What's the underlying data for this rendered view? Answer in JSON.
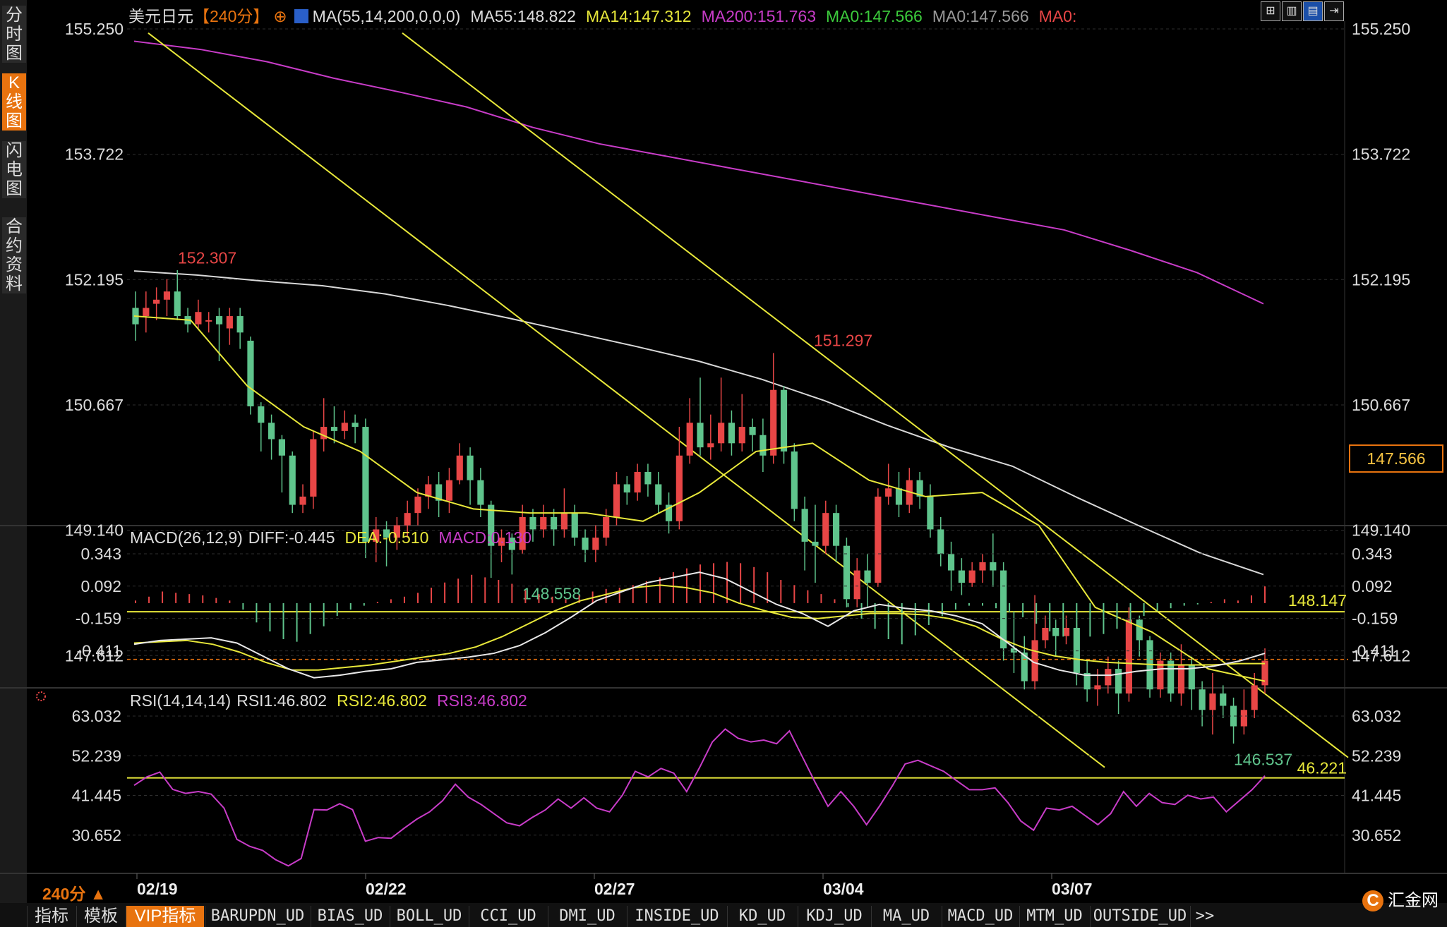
{
  "sidebar": {
    "tabs": [
      {
        "label": "分时图",
        "active": false
      },
      {
        "label": "K线图",
        "active": true
      },
      {
        "label": "闪电图",
        "active": false
      },
      {
        "label": "合约资料",
        "active": false
      }
    ]
  },
  "header": {
    "symbol": "美元日元",
    "period": "【240分】",
    "ma_params": "MA(55,14,200,0,0,0)",
    "ma55": "MA55:148.822",
    "ma14": "MA14:147.312",
    "ma200": "MA200:151.763",
    "ma0a": "MA0:147.566",
    "ma0b": "MA0:147.566",
    "ma0c": "MA0:"
  },
  "toolbar_icons": [
    "grid-icon",
    "chart-layout-icon",
    "chart-active-icon",
    "export-icon"
  ],
  "macd_legend": {
    "name": "MACD(26,12,9)",
    "diff": "DIFF:-0.445",
    "dea": "DEA:-0.510",
    "macd": "MACD:0.130"
  },
  "rsi_legend": {
    "name": "RSI(14,14,14)",
    "rsi1": "RSI1:46.802",
    "rsi2": "RSI2:46.802",
    "rsi3": "RSI3:46.802"
  },
  "price_panel": {
    "ticks": [
      "155.250",
      "153.722",
      "152.195",
      "150.667",
      "149.140",
      "147.612"
    ],
    "ticks_right": [
      "155.250",
      "153.722",
      "152.195",
      "150.667",
      "149.140",
      "147.612"
    ],
    "current_price": "147.566",
    "horizontal_level": "148.147",
    "annotations": [
      {
        "label": "152.307",
        "color": "#e84646"
      },
      {
        "label": "151.297",
        "color": "#e84646"
      },
      {
        "label": "148.558",
        "color": "#5fc48c"
      },
      {
        "label": "146.537",
        "color": "#5fc48c"
      }
    ]
  },
  "macd_panel": {
    "ticks": [
      "0.343",
      "0.092",
      "-0.159",
      "-0.411"
    ]
  },
  "rsi_panel": {
    "ticks": [
      "63.032",
      "52.239",
      "41.445",
      "30.652"
    ],
    "level": "46.221"
  },
  "x_axis": {
    "dates": [
      "02/19",
      "02/22",
      "02/27",
      "03/04",
      "03/07"
    ]
  },
  "period_badge": "240分 ▲",
  "bottom_tabs": [
    "指标",
    "模板",
    "VIP指标",
    "BARUPDN_UD",
    "BIAS_UD",
    "BOLL_UD",
    "CCI_UD",
    "DMI_UD",
    "INSIDE_UD",
    "KD_UD",
    "KDJ_UD",
    "MA_UD",
    "MACD_UD",
    "MTM_UD",
    "OUTSIDE_UD",
    ">>"
  ],
  "logo": "汇金网",
  "colors": {
    "up": "#e84646",
    "down": "#5fc48c",
    "ma55": "#d8d8d8",
    "ma14": "#e8e83a",
    "ma200": "#c83cc8",
    "accent": "#e8730f"
  },
  "chart_data": {
    "type": "candlestick",
    "title": "美元日元【240分】",
    "ylim": [
      146.2,
      155.6
    ],
    "x_labels": [
      "02/19",
      "02/22",
      "02/27",
      "03/04",
      "03/07"
    ],
    "candles": [
      [
        151.85,
        151.65,
        152.05,
        151.45
      ],
      [
        151.75,
        151.85,
        152.05,
        151.55
      ],
      [
        151.9,
        151.95,
        152.1,
        151.7
      ],
      [
        151.95,
        152.05,
        152.2,
        151.75
      ],
      [
        152.05,
        151.75,
        152.31,
        151.7
      ],
      [
        151.75,
        151.65,
        151.85,
        151.55
      ],
      [
        151.65,
        151.8,
        151.95,
        151.6
      ],
      [
        151.7,
        151.7,
        151.8,
        151.55
      ],
      [
        151.75,
        151.65,
        151.85,
        151.2
      ],
      [
        151.6,
        151.75,
        151.85,
        151.4
      ],
      [
        151.75,
        151.55,
        151.85,
        151.35
      ],
      [
        151.45,
        150.65,
        151.5,
        150.55
      ],
      [
        150.65,
        150.45,
        150.7,
        150.1
      ],
      [
        150.45,
        150.25,
        150.55,
        150.0
      ],
      [
        150.25,
        150.05,
        150.3,
        149.6
      ],
      [
        150.05,
        149.45,
        150.1,
        149.35
      ],
      [
        149.45,
        149.55,
        149.7,
        149.35
      ],
      [
        149.55,
        150.25,
        150.35,
        149.4
      ],
      [
        150.25,
        150.4,
        150.75,
        150.1
      ],
      [
        150.4,
        150.35,
        150.65,
        150.2
      ],
      [
        150.35,
        150.45,
        150.6,
        150.25
      ],
      [
        150.45,
        150.4,
        150.55,
        150.2
      ],
      [
        150.4,
        149.0,
        150.5,
        148.8
      ],
      [
        149.0,
        149.15,
        149.3,
        148.75
      ],
      [
        149.15,
        149.05,
        149.25,
        148.7
      ],
      [
        149.05,
        149.2,
        149.3,
        148.9
      ],
      [
        149.2,
        149.35,
        149.5,
        149.05
      ],
      [
        149.35,
        149.55,
        149.65,
        149.2
      ],
      [
        149.55,
        149.7,
        149.8,
        149.4
      ],
      [
        149.7,
        149.5,
        149.85,
        149.3
      ],
      [
        149.5,
        149.75,
        149.9,
        149.35
      ],
      [
        149.75,
        150.05,
        150.2,
        149.7
      ],
      [
        150.05,
        149.75,
        150.15,
        149.45
      ],
      [
        149.75,
        149.45,
        149.9,
        149.3
      ],
      [
        149.45,
        148.95,
        149.5,
        148.56
      ],
      [
        148.95,
        149.05,
        149.15,
        148.75
      ],
      [
        149.05,
        148.9,
        149.1,
        148.6
      ],
      [
        148.9,
        149.3,
        149.45,
        148.85
      ],
      [
        149.3,
        149.15,
        149.4,
        149.0
      ],
      [
        149.15,
        149.3,
        149.45,
        149.05
      ],
      [
        149.3,
        149.15,
        149.4,
        148.95
      ],
      [
        149.15,
        149.35,
        149.65,
        149.05
      ],
      [
        149.35,
        149.05,
        149.45,
        148.95
      ],
      [
        149.05,
        148.9,
        149.15,
        148.75
      ],
      [
        148.9,
        149.05,
        149.2,
        148.75
      ],
      [
        149.05,
        149.3,
        149.4,
        148.95
      ],
      [
        149.3,
        149.7,
        149.85,
        149.2
      ],
      [
        149.7,
        149.6,
        149.8,
        149.45
      ],
      [
        149.6,
        149.85,
        149.95,
        149.5
      ],
      [
        149.85,
        149.7,
        149.95,
        149.55
      ],
      [
        149.7,
        149.45,
        149.85,
        149.35
      ],
      [
        149.45,
        149.25,
        149.6,
        149.1
      ],
      [
        149.25,
        150.05,
        150.4,
        149.15
      ],
      [
        150.05,
        150.45,
        150.75,
        149.95
      ],
      [
        150.45,
        150.15,
        151.0,
        150.05
      ],
      [
        150.15,
        150.2,
        150.55,
        150.0
      ],
      [
        150.2,
        150.45,
        151.0,
        150.1
      ],
      [
        150.45,
        150.2,
        150.6,
        150.05
      ],
      [
        150.2,
        150.4,
        150.8,
        150.1
      ],
      [
        150.4,
        150.3,
        150.5,
        150.1
      ],
      [
        150.3,
        150.05,
        150.5,
        149.85
      ],
      [
        150.05,
        150.85,
        151.3,
        149.95
      ],
      [
        150.85,
        150.1,
        150.9,
        149.95
      ],
      [
        150.1,
        149.4,
        150.2,
        149.25
      ],
      [
        149.4,
        149.0,
        149.55,
        148.65
      ],
      [
        149.0,
        148.95,
        149.45,
        148.5
      ],
      [
        148.95,
        149.35,
        149.5,
        148.85
      ],
      [
        149.35,
        148.95,
        149.45,
        148.75
      ],
      [
        148.95,
        148.3,
        149.05,
        148.2
      ],
      [
        148.3,
        148.65,
        148.8,
        148.2
      ],
      [
        148.65,
        148.5,
        148.85,
        148.2
      ],
      [
        148.5,
        149.55,
        149.65,
        148.45
      ],
      [
        149.55,
        149.65,
        149.95,
        149.45
      ],
      [
        149.65,
        149.45,
        149.85,
        149.3
      ],
      [
        149.45,
        149.75,
        149.9,
        149.35
      ],
      [
        149.75,
        149.55,
        149.85,
        149.4
      ],
      [
        149.55,
        149.15,
        149.7,
        149.05
      ],
      [
        149.15,
        148.85,
        149.3,
        148.7
      ],
      [
        148.85,
        148.65,
        149.0,
        148.4
      ],
      [
        148.65,
        148.5,
        148.8,
        148.35
      ],
      [
        148.5,
        148.65,
        148.75,
        148.45
      ],
      [
        148.65,
        148.75,
        148.85,
        148.5
      ],
      [
        148.75,
        148.65,
        149.1,
        148.45
      ],
      [
        148.65,
        147.7,
        148.75,
        147.55
      ],
      [
        147.7,
        147.65,
        148.15,
        147.4
      ],
      [
        147.65,
        147.3,
        147.85,
        147.2
      ],
      [
        147.3,
        147.8,
        148.35,
        147.2
      ],
      [
        147.8,
        147.95,
        148.1,
        147.7
      ],
      [
        147.95,
        147.85,
        148.05,
        147.6
      ],
      [
        147.85,
        147.95,
        148.1,
        147.75
      ],
      [
        147.95,
        147.4,
        148.0,
        147.25
      ],
      [
        147.4,
        147.2,
        147.55,
        147.05
      ],
      [
        147.2,
        147.25,
        147.45,
        147.0
      ],
      [
        147.25,
        147.45,
        147.6,
        147.15
      ],
      [
        147.45,
        147.15,
        147.55,
        146.9
      ],
      [
        147.15,
        148.05,
        148.2,
        147.05
      ],
      [
        148.05,
        147.8,
        148.1,
        147.6
      ],
      [
        147.8,
        147.2,
        147.85,
        147.1
      ],
      [
        147.2,
        147.55,
        147.65,
        147.1
      ],
      [
        147.55,
        147.15,
        147.65,
        147.05
      ],
      [
        147.15,
        147.5,
        147.75,
        147.0
      ],
      [
        147.5,
        147.2,
        147.6,
        146.95
      ],
      [
        147.2,
        146.95,
        147.3,
        146.75
      ],
      [
        146.95,
        147.15,
        147.4,
        146.65
      ],
      [
        147.15,
        147.0,
        147.25,
        146.85
      ],
      [
        147.0,
        146.75,
        147.1,
        146.54
      ],
      [
        146.75,
        146.95,
        147.2,
        146.65
      ],
      [
        146.95,
        147.25,
        147.4,
        146.85
      ],
      [
        147.25,
        147.55,
        147.7,
        147.15
      ]
    ],
    "ma55": [
      152.3,
      152.25,
      152.18,
      152.12,
      152.02,
      151.88,
      151.72,
      151.55,
      151.38,
      151.2,
      150.98,
      150.72,
      150.42,
      150.15,
      149.92,
      149.55,
      149.2,
      148.86,
      148.6
    ],
    "ma14": [
      151.75,
      151.7,
      150.9,
      150.4,
      150.1,
      149.6,
      149.4,
      149.35,
      149.35,
      149.25,
      149.6,
      150.1,
      150.2,
      149.75,
      149.55,
      149.6,
      149.2,
      148.2,
      147.9,
      147.45,
      147.3
    ],
    "ma200": [
      155.1,
      155.0,
      154.85,
      154.65,
      154.48,
      154.3,
      154.05,
      153.85,
      153.7,
      153.55,
      153.4,
      153.25,
      153.1,
      152.95,
      152.8,
      152.55,
      152.28,
      151.9
    ],
    "macd_hist": [
      0.02,
      0.05,
      0.09,
      0.08,
      0.07,
      0.06,
      0.04,
      0.02,
      -0.05,
      -0.15,
      -0.22,
      -0.28,
      -0.3,
      -0.24,
      -0.18,
      -0.1,
      -0.05,
      -0.02,
      0.01,
      0.03,
      0.05,
      0.08,
      0.12,
      0.16,
      0.19,
      0.22,
      0.2,
      0.18,
      0.15,
      0.1,
      0.07,
      0.05,
      0.03,
      0.06,
      0.09,
      0.11,
      0.12,
      0.14,
      0.17,
      0.2,
      0.24,
      0.27,
      0.3,
      0.31,
      0.32,
      0.31,
      0.28,
      0.24,
      0.18,
      0.14,
      0.1,
      0.07,
      0.03,
      -0.03,
      -0.12,
      -0.2,
      -0.28,
      -0.32,
      -0.25,
      -0.17,
      -0.1,
      -0.05,
      -0.02,
      -0.02,
      -0.04,
      -0.07,
      -0.11,
      -0.16,
      -0.22,
      -0.26,
      -0.28,
      -0.26,
      -0.24,
      -0.2,
      -0.15,
      -0.1,
      -0.06,
      -0.04,
      -0.02,
      -0.01,
      0.01,
      0.03,
      0.02,
      0.06,
      0.13
    ],
    "macd_diff": [
      -0.36,
      -0.33,
      -0.32,
      -0.31,
      -0.35,
      -0.45,
      -0.55,
      -0.62,
      -0.6,
      -0.57,
      -0.55,
      -0.5,
      -0.48,
      -0.46,
      -0.43,
      -0.37,
      -0.27,
      -0.15,
      -0.02,
      0.05,
      0.12,
      0.16,
      0.2,
      0.15,
      0.05,
      -0.05,
      -0.12,
      -0.22,
      -0.1,
      -0.05,
      -0.08,
      -0.1,
      -0.14,
      -0.2,
      -0.35,
      -0.5,
      -0.56,
      -0.6,
      -0.6,
      -0.57,
      -0.55,
      -0.55,
      -0.53,
      -0.49,
      -0.43
    ],
    "macd_dea": [
      -0.35,
      -0.34,
      -0.33,
      -0.36,
      -0.42,
      -0.5,
      -0.56,
      -0.56,
      -0.54,
      -0.52,
      -0.49,
      -0.46,
      -0.43,
      -0.38,
      -0.3,
      -0.2,
      -0.1,
      -0.02,
      0.03,
      0.08,
      0.1,
      0.08,
      0.04,
      -0.04,
      -0.1,
      -0.15,
      -0.16,
      -0.14,
      -0.12,
      -0.12,
      -0.13,
      -0.16,
      -0.22,
      -0.32,
      -0.4,
      -0.45,
      -0.48,
      -0.5,
      -0.51,
      -0.52,
      -0.52,
      -0.52,
      -0.51,
      -0.51
    ],
    "rsi": [
      44.2,
      46.5,
      47.8,
      43.1,
      42.0,
      42.5,
      41.8,
      38.0,
      29.5,
      27.6,
      26.5,
      24.0,
      22.3,
      24.3,
      37.6,
      37.5,
      39.2,
      37.6,
      29.0,
      30.0,
      29.8,
      32.5,
      35.0,
      37.0,
      40.0,
      44.5,
      41.0,
      39.0,
      36.5,
      34.0,
      33.2,
      35.5,
      37.5,
      40.5,
      38.0,
      40.8,
      38.0,
      37.0,
      41.5,
      48.0,
      46.5,
      48.8,
      47.5,
      42.5,
      49.0,
      56.0,
      59.5,
      57.0,
      56.0,
      56.5,
      55.5,
      59.0,
      52.0,
      45.0,
      38.5,
      42.5,
      38.5,
      33.5,
      38.5,
      44.0,
      50.0,
      51.0,
      49.5,
      48.0,
      45.5,
      43.0,
      43.0,
      43.5,
      39.5,
      34.5,
      32.0,
      38.0,
      37.5,
      38.5,
      36.0,
      33.5,
      36.5,
      42.5,
      38.5,
      42.0,
      39.5,
      39.0,
      41.5,
      40.5,
      41.0,
      37.0,
      40.0,
      43.0,
      46.8
    ]
  }
}
